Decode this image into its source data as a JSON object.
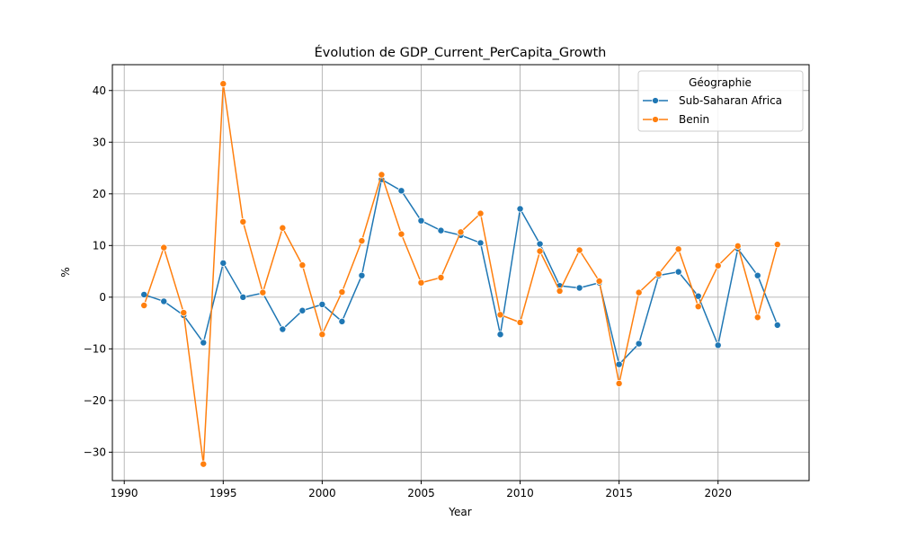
{
  "chart_data": {
    "type": "line",
    "title": "Évolution de GDP_Current_PerCapita_Growth",
    "xlabel": "Year",
    "ylabel": "%",
    "xlim": [
      1989.4,
      2024.6
    ],
    "ylim": [
      -35.5,
      45.0
    ],
    "xticks": [
      1990,
      1995,
      2000,
      2005,
      2010,
      2015,
      2020
    ],
    "yticks": [
      -30,
      -20,
      -10,
      0,
      10,
      20,
      30,
      40
    ],
    "grid": true,
    "legend": {
      "title": "Géographie",
      "position": "top-right"
    },
    "x": [
      1991,
      1992,
      1993,
      1994,
      1995,
      1996,
      1997,
      1998,
      1999,
      2000,
      2001,
      2002,
      2003,
      2004,
      2005,
      2006,
      2007,
      2008,
      2009,
      2010,
      2011,
      2012,
      2013,
      2014,
      2015,
      2016,
      2017,
      2018,
      2019,
      2020,
      2021,
      2022,
      2023
    ],
    "series": [
      {
        "name": "Sub-Saharan Africa",
        "color": "#1f77b4",
        "values": [
          0.5,
          -0.8,
          -3.5,
          -8.8,
          6.6,
          0.0,
          0.8,
          -6.2,
          -2.6,
          -1.4,
          -4.7,
          4.2,
          22.8,
          20.6,
          14.8,
          12.9,
          12.0,
          10.5,
          -7.2,
          17.1,
          10.3,
          2.2,
          1.8,
          2.8,
          -13.0,
          -9.0,
          4.2,
          4.9,
          0.2,
          -9.3,
          9.4,
          4.2,
          -5.4
        ]
      },
      {
        "name": "Benin",
        "color": "#ff7f0e",
        "values": [
          -1.6,
          9.6,
          -3.0,
          -32.3,
          41.3,
          14.6,
          0.9,
          13.4,
          6.2,
          -7.2,
          1.0,
          10.9,
          23.7,
          12.2,
          2.8,
          3.8,
          12.6,
          16.2,
          -3.4,
          -4.9,
          8.9,
          1.2,
          9.1,
          3.1,
          -16.7,
          0.9,
          4.5,
          9.3,
          -1.8,
          6.1,
          9.9,
          -3.9,
          10.2
        ]
      }
    ]
  }
}
